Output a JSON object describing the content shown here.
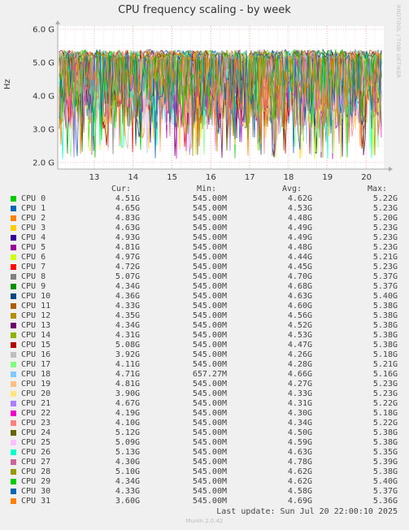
{
  "title": "CPU frequency scaling - by week",
  "side_label": "RRDTOOL / TOBI OETIKER",
  "footer": "Last update: Sun Jul 20 22:00:10 2025",
  "munin_version": "Munin 2.0.42",
  "headers": {
    "cur": "Cur:",
    "min": "Min:",
    "avg": "Avg:",
    "max": "Max:"
  },
  "chart_data": {
    "type": "line",
    "ylabel": "Hz",
    "y_ticks": [
      "2.0 G",
      "3.0 G",
      "4.0 G",
      "5.0 G",
      "6.0 G"
    ],
    "x_ticks": [
      "13",
      "14",
      "15",
      "16",
      "17",
      "18",
      "19",
      "20"
    ],
    "ylim": [
      1.8,
      6.1
    ],
    "grid": true,
    "legend_placement": "bottom",
    "series": [
      {
        "name": "CPU 0",
        "color": "#00cc00",
        "cur": "4.51G",
        "min": "545.00M",
        "avg": "4.62G",
        "max": "5.22G"
      },
      {
        "name": "CPU 1",
        "color": "#0066b3",
        "cur": "4.65G",
        "min": "545.00M",
        "avg": "4.53G",
        "max": "5.23G"
      },
      {
        "name": "CPU 2",
        "color": "#ff8000",
        "cur": "4.83G",
        "min": "545.00M",
        "avg": "4.48G",
        "max": "5.20G"
      },
      {
        "name": "CPU 3",
        "color": "#ffcc00",
        "cur": "4.63G",
        "min": "545.00M",
        "avg": "4.49G",
        "max": "5.23G"
      },
      {
        "name": "CPU 4",
        "color": "#330099",
        "cur": "4.93G",
        "min": "545.00M",
        "avg": "4.49G",
        "max": "5.23G"
      },
      {
        "name": "CPU 5",
        "color": "#990099",
        "cur": "4.81G",
        "min": "545.00M",
        "avg": "4.48G",
        "max": "5.23G"
      },
      {
        "name": "CPU 6",
        "color": "#ccff00",
        "cur": "4.97G",
        "min": "545.00M",
        "avg": "4.44G",
        "max": "5.21G"
      },
      {
        "name": "CPU 7",
        "color": "#ff0000",
        "cur": "4.72G",
        "min": "545.00M",
        "avg": "4.45G",
        "max": "5.23G"
      },
      {
        "name": "CPU 8",
        "color": "#808080",
        "cur": "5.07G",
        "min": "545.00M",
        "avg": "4.70G",
        "max": "5.37G"
      },
      {
        "name": "CPU 9",
        "color": "#008f00",
        "cur": "4.34G",
        "min": "545.00M",
        "avg": "4.68G",
        "max": "5.37G"
      },
      {
        "name": "CPU 10",
        "color": "#00487d",
        "cur": "4.36G",
        "min": "545.00M",
        "avg": "4.63G",
        "max": "5.40G"
      },
      {
        "name": "CPU 11",
        "color": "#b35a00",
        "cur": "4.33G",
        "min": "545.00M",
        "avg": "4.60G",
        "max": "5.38G"
      },
      {
        "name": "CPU 12",
        "color": "#b38f00",
        "cur": "4.35G",
        "min": "545.00M",
        "avg": "4.56G",
        "max": "5.38G"
      },
      {
        "name": "CPU 13",
        "color": "#6b006b",
        "cur": "4.34G",
        "min": "545.00M",
        "avg": "4.52G",
        "max": "5.38G"
      },
      {
        "name": "CPU 14",
        "color": "#8fb300",
        "cur": "4.31G",
        "min": "545.00M",
        "avg": "4.53G",
        "max": "5.38G"
      },
      {
        "name": "CPU 15",
        "color": "#b30000",
        "cur": "5.08G",
        "min": "545.00M",
        "avg": "4.47G",
        "max": "5.38G"
      },
      {
        "name": "CPU 16",
        "color": "#bebebe",
        "cur": "3.92G",
        "min": "545.00M",
        "avg": "4.26G",
        "max": "5.18G"
      },
      {
        "name": "CPU 17",
        "color": "#80ff80",
        "cur": "4.11G",
        "min": "545.00M",
        "avg": "4.28G",
        "max": "5.21G"
      },
      {
        "name": "CPU 18",
        "color": "#80c9ff",
        "cur": "4.71G",
        "min": "657.27M",
        "avg": "4.66G",
        "max": "5.16G"
      },
      {
        "name": "CPU 19",
        "color": "#ffc080",
        "cur": "4.81G",
        "min": "545.00M",
        "avg": "4.27G",
        "max": "5.23G"
      },
      {
        "name": "CPU 20",
        "color": "#ffe680",
        "cur": "3.90G",
        "min": "545.00M",
        "avg": "4.33G",
        "max": "5.23G"
      },
      {
        "name": "CPU 21",
        "color": "#aa80ff",
        "cur": "4.67G",
        "min": "545.00M",
        "avg": "4.31G",
        "max": "5.22G"
      },
      {
        "name": "CPU 22",
        "color": "#ee00cc",
        "cur": "4.19G",
        "min": "545.00M",
        "avg": "4.30G",
        "max": "5.18G"
      },
      {
        "name": "CPU 23",
        "color": "#ff8080",
        "cur": "4.10G",
        "min": "545.00M",
        "avg": "4.34G",
        "max": "5.22G"
      },
      {
        "name": "CPU 24",
        "color": "#666600",
        "cur": "5.12G",
        "min": "545.00M",
        "avg": "4.50G",
        "max": "5.38G"
      },
      {
        "name": "CPU 25",
        "color": "#ffbfff",
        "cur": "5.09G",
        "min": "545.00M",
        "avg": "4.59G",
        "max": "5.38G"
      },
      {
        "name": "CPU 26",
        "color": "#00ffcc",
        "cur": "5.13G",
        "min": "545.00M",
        "avg": "4.63G",
        "max": "5.35G"
      },
      {
        "name": "CPU 27",
        "color": "#cc6699",
        "cur": "4.30G",
        "min": "545.00M",
        "avg": "4.78G",
        "max": "5.39G"
      },
      {
        "name": "CPU 28",
        "color": "#999900",
        "cur": "5.10G",
        "min": "545.00M",
        "avg": "4.62G",
        "max": "5.38G"
      },
      {
        "name": "CPU 29",
        "color": "#00cc00",
        "cur": "4.34G",
        "min": "545.00M",
        "avg": "4.62G",
        "max": "5.40G"
      },
      {
        "name": "CPU 30",
        "color": "#0066b3",
        "cur": "4.33G",
        "min": "545.00M",
        "avg": "4.58G",
        "max": "5.37G"
      },
      {
        "name": "CPU 31",
        "color": "#ff8000",
        "cur": "3.60G",
        "min": "545.00M",
        "avg": "4.69G",
        "max": "5.36G"
      }
    ]
  }
}
